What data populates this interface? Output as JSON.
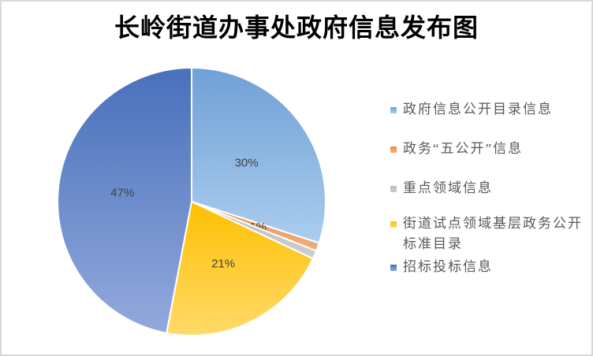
{
  "frame": {
    "background": "#ffffff",
    "border_color": "#d9d9d9"
  },
  "title": "长岭街道办事处政府信息发布图",
  "chart_data": {
    "type": "pie",
    "title": "长岭街道办事处政府信息发布图",
    "legend_position": "right",
    "direction": "clockwise",
    "start_angle_deg": 0,
    "label_format": "percent",
    "label_color": "#404040",
    "legend_text_color": "#595959",
    "series": [
      {
        "name": "政府信息公开目录信息",
        "value": 30,
        "label": "30%",
        "color_top": "#6fa0d6",
        "color_bottom": "#abcdee"
      },
      {
        "name": "政务“五公开”信息",
        "value": 1,
        "label": "1%",
        "color_top": "#e88b4b",
        "color_bottom": "#f2af80"
      },
      {
        "name": "重点领域信息",
        "value": 1,
        "label": "1%",
        "color_top": "#bdbdbd",
        "color_bottom": "#cdcdcd"
      },
      {
        "name": "街道试点领域基层政务公开标准目录",
        "value": 21,
        "label": "21%",
        "color_top": "#fec002",
        "color_bottom": "#ffda69"
      },
      {
        "name": "招标投标信息",
        "value": 47,
        "label": "47%",
        "color_top": "#4870bc",
        "color_bottom": "#93a9db"
      }
    ]
  }
}
